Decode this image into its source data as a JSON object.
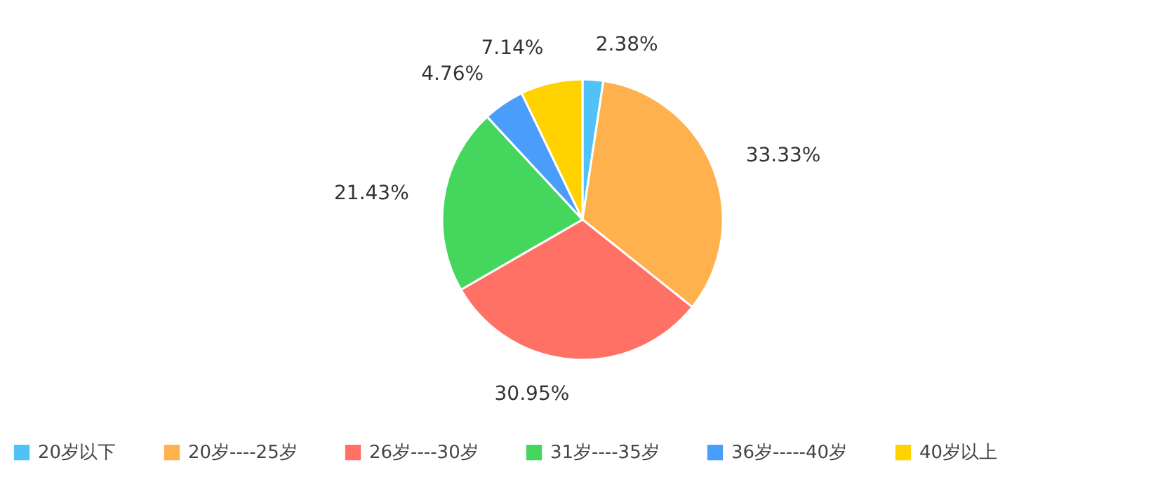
{
  "chart_data": {
    "type": "pie",
    "categories": [
      "20岁以下",
      "20岁----25岁",
      "26岁----30岁",
      "31岁----35岁",
      "36岁-----40岁",
      "40岁以上"
    ],
    "values": [
      2.38,
      33.33,
      30.95,
      21.43,
      4.76,
      7.14
    ],
    "value_labels": [
      "2.38%",
      "33.33%",
      "30.95%",
      "21.43%",
      "4.76%",
      "7.14%"
    ],
    "colors": [
      "#4fc3f7",
      "#ffb14e",
      "#ff7065",
      "#45d65e",
      "#4b9dfb",
      "#ffd200"
    ],
    "legend": "bottom"
  }
}
